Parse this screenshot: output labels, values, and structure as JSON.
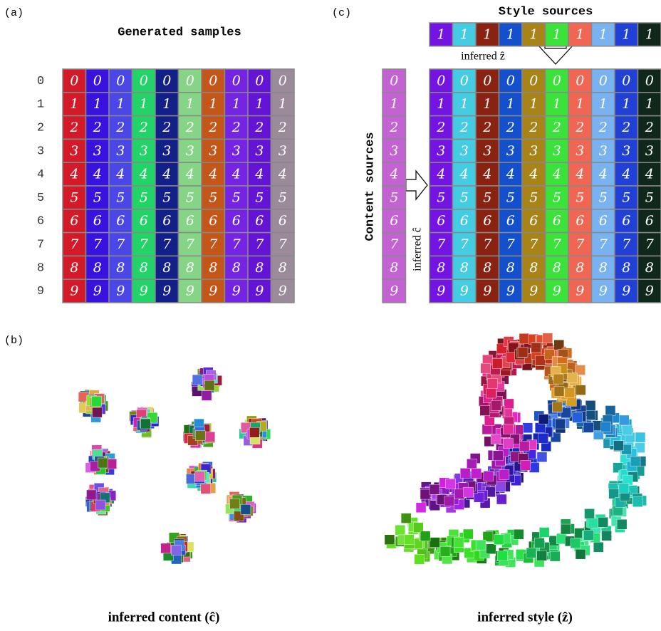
{
  "panel_a": {
    "label": "(a)",
    "title": "Generated samples",
    "row_labels": [
      "0",
      "1",
      "2",
      "3",
      "4",
      "5",
      "6",
      "7",
      "8",
      "9"
    ],
    "column_colors": [
      "#d41a28",
      "#3a12e0",
      "#4b46e6",
      "#22d468",
      "#14208a",
      "#86d486",
      "#c4561a",
      "#7424e2",
      "#6414d4",
      "#9a8a9a"
    ]
  },
  "panel_b": {
    "label": "(b)",
    "content_caption": "inferred content (ĉ)",
    "style_caption": "inferred style (ẑ)"
  },
  "panel_c": {
    "label": "(c)",
    "style_title": "Style sources",
    "content_title": "Content sources",
    "style_digits": [
      "1",
      "1",
      "1",
      "1",
      "1",
      "1",
      "1",
      "1",
      "1",
      "1"
    ],
    "content_digits": [
      "0",
      "1",
      "2",
      "3",
      "4",
      "5",
      "6",
      "7",
      "8",
      "9"
    ],
    "inferred_z": "inferred ẑ",
    "inferred_c": "inferred ĉ",
    "style_colors": [
      "#7414e2",
      "#44cce2",
      "#8a2212",
      "#1450cc",
      "#a88418",
      "#3ae23a",
      "#f06652",
      "#78b2f0",
      "#2040d6",
      "#10281a"
    ],
    "content_color": "#c462d4"
  }
}
